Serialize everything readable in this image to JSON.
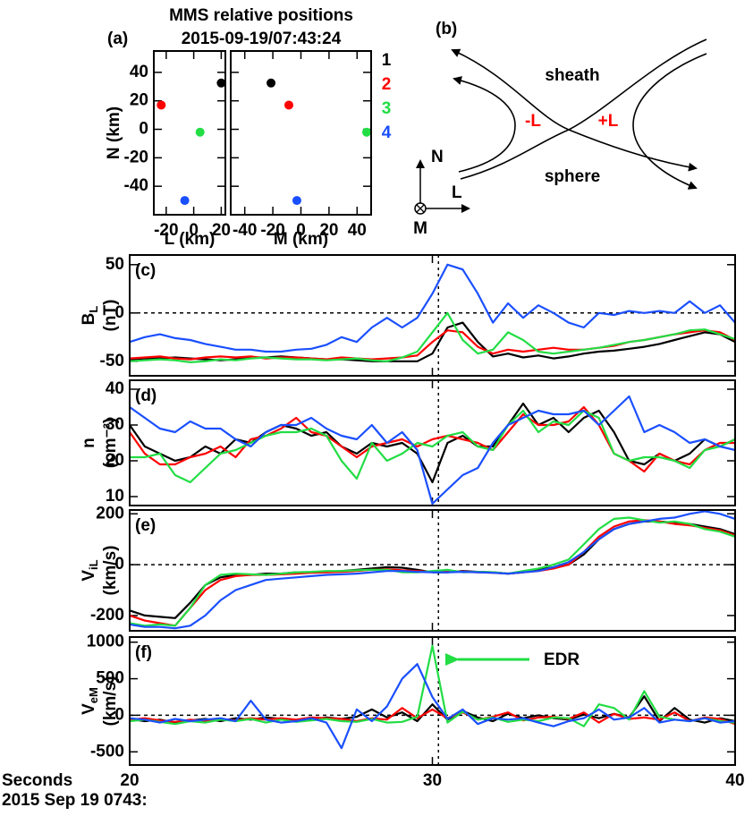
{
  "chart_data": [
    {
      "type": "scatter",
      "panel": "(a)",
      "title": "MMS relative positions",
      "subtitle": "2015-09-19/07:43:24",
      "xlabel": "L (km)",
      "ylabel": "N (km)",
      "xlim": [
        -29,
        23
      ],
      "ylim": [
        -60,
        55
      ],
      "xticks": [
        -20,
        0,
        20
      ],
      "yticks": [
        -40,
        -20,
        0,
        20,
        40
      ],
      "series": [
        {
          "name": "1",
          "color": "#000000",
          "x": [
            20
          ],
          "values": [
            32.5
          ]
        },
        {
          "name": "2",
          "color": "#ff0000",
          "x": [
            -23.6
          ],
          "values": [
            17
          ]
        },
        {
          "name": "3",
          "color": "#22dd44",
          "x": [
            4.6
          ],
          "values": [
            -2
          ]
        },
        {
          "name": "4",
          "color": "#1a4fff",
          "x": [
            -6.5
          ],
          "values": [
            -50
          ]
        }
      ]
    },
    {
      "type": "scatter",
      "xlabel": "M (km)",
      "xlim": [
        -50,
        50
      ],
      "ylim": [
        -60,
        55
      ],
      "xticks": [
        -40,
        -20,
        0,
        20,
        40
      ],
      "yticks": [
        -40,
        -20,
        0,
        20,
        40
      ],
      "series": [
        {
          "color": "#000000",
          "x": [
            -21.3
          ],
          "values": [
            32.5
          ]
        },
        {
          "color": "#ff0000",
          "x": [
            -8.6
          ],
          "values": [
            17
          ]
        },
        {
          "color": "#22dd44",
          "x": [
            46.8
          ],
          "values": [
            -2
          ]
        },
        {
          "color": "#1a4fff",
          "x": [
            -2.9
          ],
          "values": [
            -50
          ]
        }
      ]
    },
    {
      "type": "line",
      "panel": "(c)",
      "ylabel": "B",
      "ylabel_sub": "L",
      "ylabel_unit": "(nT)",
      "xlim": [
        20,
        40
      ],
      "xticks": [
        20,
        30,
        40
      ],
      "ylim": [
        -65,
        60
      ],
      "yticks": [
        -50,
        0,
        50
      ],
      "hline": 0,
      "vline": 30.2,
      "x": [
        20,
        20.5,
        21,
        21.5,
        22,
        22.5,
        23,
        23.5,
        24,
        24.5,
        25,
        25.5,
        26,
        26.5,
        27,
        27.5,
        28,
        28.5,
        29,
        29.5,
        30,
        30.5,
        31,
        31.5,
        32,
        32.5,
        33,
        33.5,
        34,
        34.5,
        35,
        35.5,
        36,
        36.5,
        37,
        37.5,
        38,
        38.5,
        39,
        39.5,
        40
      ],
      "series": [
        {
          "color": "#000000",
          "values": [
            -48,
            -47,
            -47,
            -46,
            -47,
            -48,
            -49,
            -48,
            -46,
            -46,
            -45,
            -46,
            -47,
            -48,
            -48,
            -49,
            -50,
            -50,
            -50,
            -50,
            -42,
            -15,
            -10,
            -30,
            -45,
            -42,
            -46,
            -44,
            -47,
            -45,
            -42,
            -40,
            -39,
            -37,
            -35,
            -32,
            -28,
            -24,
            -20,
            -22,
            -30
          ]
        },
        {
          "color": "#ff0000",
          "values": [
            -47,
            -46,
            -45,
            -47,
            -48,
            -46,
            -45,
            -46,
            -45,
            -47,
            -46,
            -46,
            -47,
            -48,
            -46,
            -47,
            -48,
            -47,
            -46,
            -44,
            -30,
            -18,
            -20,
            -35,
            -42,
            -38,
            -40,
            -38,
            -36,
            -38,
            -38,
            -36,
            -34,
            -30,
            -28,
            -25,
            -22,
            -20,
            -18,
            -20,
            -28
          ]
        },
        {
          "color": "#22dd44",
          "values": [
            -50,
            -49,
            -48,
            -49,
            -51,
            -50,
            -48,
            -49,
            -47,
            -46,
            -47,
            -48,
            -48,
            -49,
            -48,
            -47,
            -49,
            -50,
            -46,
            -40,
            -20,
            0,
            -28,
            -42,
            -38,
            -20,
            -28,
            -40,
            -42,
            -40,
            -38,
            -36,
            -33,
            -30,
            -28,
            -25,
            -22,
            -18,
            -17,
            -22,
            -27
          ]
        },
        {
          "color": "#1a4fff",
          "values": [
            -30,
            -25,
            -22,
            -26,
            -28,
            -32,
            -35,
            -38,
            -38,
            -40,
            -40,
            -38,
            -37,
            -33,
            -25,
            -30,
            -15,
            -5,
            -15,
            -5,
            20,
            50,
            45,
            20,
            -10,
            10,
            -5,
            8,
            0,
            -10,
            -15,
            0,
            -2,
            2,
            0,
            2,
            0,
            12,
            0,
            8,
            -10
          ]
        }
      ]
    },
    {
      "type": "line",
      "panel": "(d)",
      "ylabel": "n",
      "ylabel_unit": "(cm⁻³)",
      "xlim": [
        20,
        40
      ],
      "xticks": [
        20,
        30,
        40
      ],
      "ylim": [
        7.5,
        42.5
      ],
      "yticks": [
        10,
        20,
        30,
        40
      ],
      "vline": 30.2,
      "x": [
        20,
        20.5,
        21,
        21.5,
        22,
        22.5,
        23,
        23.5,
        24,
        24.5,
        25,
        25.5,
        26,
        26.5,
        27,
        27.5,
        28,
        28.5,
        29,
        29.5,
        30,
        30.5,
        31,
        31.5,
        32,
        32.5,
        33,
        33.5,
        34,
        34.5,
        35,
        35.5,
        36,
        36.5,
        37,
        37.5,
        38,
        38.5,
        39,
        39.5,
        40
      ],
      "series": [
        {
          "color": "#000000",
          "values": [
            30,
            24,
            22,
            20,
            21,
            24,
            22,
            26,
            25,
            28,
            30,
            29,
            27,
            28,
            24,
            22,
            25,
            24,
            25,
            22,
            14,
            25,
            27,
            24,
            24,
            30,
            36,
            30,
            32,
            28,
            32,
            34,
            28,
            20,
            19,
            22,
            20,
            22,
            26,
            24,
            26
          ]
        },
        {
          "color": "#ff0000",
          "values": [
            28,
            22,
            19,
            19,
            21,
            22,
            24,
            21,
            26,
            27,
            29,
            32,
            28,
            27,
            24,
            21,
            24,
            25,
            26,
            24,
            26,
            27,
            26,
            25,
            23,
            28,
            33,
            30,
            30,
            31,
            35,
            30,
            22,
            20,
            17,
            22,
            20,
            19,
            23,
            25,
            25
          ]
        },
        {
          "color": "#22dd44",
          "values": [
            21,
            21,
            22,
            16,
            14,
            18,
            22,
            23,
            25,
            27,
            28,
            28,
            29,
            27,
            20,
            15,
            25,
            20,
            22,
            25,
            24,
            27,
            28,
            24,
            23,
            30,
            34,
            28,
            31,
            30,
            34,
            32,
            22,
            20,
            21,
            21,
            20,
            18,
            23,
            24,
            26
          ]
        },
        {
          "color": "#1a4fff",
          "values": [
            35,
            32,
            29,
            28,
            31,
            29,
            29,
            26,
            24,
            28,
            30,
            30,
            32,
            29,
            27,
            26,
            30,
            25,
            28,
            23,
            8,
            12,
            16,
            18,
            25,
            30,
            32,
            34,
            33,
            33,
            34,
            30,
            34,
            38,
            28,
            30,
            28,
            25,
            26,
            24,
            23
          ]
        }
      ]
    },
    {
      "type": "line",
      "panel": "(e)",
      "ylabel": "V",
      "ylabel_sub": "iL",
      "ylabel_unit": "(km/s)",
      "xlim": [
        20,
        40
      ],
      "xticks": [
        20,
        30,
        40
      ],
      "ylim": [
        -260,
        215
      ],
      "yticks": [
        -200,
        0,
        200
      ],
      "hline": 0,
      "vline": 30.2,
      "x": [
        20,
        20.5,
        21,
        21.5,
        22,
        22.5,
        23,
        23.5,
        24,
        24.5,
        25,
        25.5,
        26,
        26.5,
        27,
        27.5,
        28,
        28.5,
        29,
        29.5,
        30,
        30.5,
        31,
        31.5,
        32,
        32.5,
        33,
        33.5,
        34,
        34.5,
        35,
        35.5,
        36,
        36.5,
        37,
        37.5,
        38,
        38.5,
        39,
        39.5,
        40
      ],
      "series": [
        {
          "color": "#000000",
          "values": [
            -180,
            -200,
            -205,
            -210,
            -150,
            -80,
            -50,
            -40,
            -40,
            -35,
            -35,
            -30,
            -30,
            -28,
            -25,
            -20,
            -15,
            -10,
            -12,
            -20,
            -30,
            -30,
            -25,
            -28,
            -30,
            -35,
            -30,
            -20,
            -10,
            0,
            40,
            100,
            140,
            160,
            170,
            170,
            165,
            160,
            150,
            140,
            120
          ]
        },
        {
          "color": "#ff0000",
          "values": [
            -200,
            -220,
            -230,
            -240,
            -170,
            -100,
            -60,
            -45,
            -40,
            -40,
            -38,
            -35,
            -32,
            -30,
            -28,
            -25,
            -20,
            -18,
            -22,
            -25,
            -28,
            -28,
            -27,
            -30,
            -32,
            -35,
            -30,
            -25,
            -15,
            0,
            50,
            110,
            150,
            170,
            175,
            170,
            160,
            155,
            145,
            135,
            115
          ]
        },
        {
          "color": "#22dd44",
          "values": [
            -230,
            -240,
            -235,
            -240,
            -170,
            -80,
            -40,
            -35,
            -38,
            -40,
            -35,
            -30,
            -28,
            -25,
            -25,
            -22,
            -20,
            -20,
            -30,
            -30,
            -25,
            -20,
            -30,
            -28,
            -30,
            -35,
            -25,
            -15,
            0,
            20,
            80,
            140,
            180,
            185,
            175,
            165,
            170,
            160,
            140,
            130,
            110
          ]
        },
        {
          "color": "#1a4fff",
          "values": [
            -235,
            -245,
            -245,
            -250,
            -240,
            -200,
            -140,
            -100,
            -80,
            -60,
            -55,
            -50,
            -45,
            -40,
            -38,
            -35,
            -30,
            -25,
            -25,
            -28,
            -30,
            -30,
            -28,
            -30,
            -32,
            -35,
            -30,
            -25,
            -10,
            10,
            50,
            100,
            140,
            160,
            170,
            180,
            185,
            200,
            210,
            200,
            180
          ]
        }
      ]
    },
    {
      "type": "line",
      "panel": "(f)",
      "ylabel": "V",
      "ylabel_sub": "eM",
      "ylabel_unit": "(km/s)",
      "xlim": [
        20,
        40
      ],
      "xticks": [
        20,
        30,
        40
      ],
      "ylim": [
        -680,
        1070
      ],
      "yticks": [
        -500,
        0,
        500,
        1000
      ],
      "hline": 0,
      "vline": 30.2,
      "xlabel": "Seconds",
      "date_label": "2015 Sep 19 0743:",
      "annotation": "EDR",
      "x": [
        20,
        20.5,
        21,
        21.5,
        22,
        22.5,
        23,
        23.5,
        24,
        24.5,
        25,
        25.5,
        26,
        26.5,
        27,
        27.5,
        28,
        28.5,
        29,
        29.5,
        30,
        30.5,
        31,
        31.5,
        32,
        32.5,
        33,
        33.5,
        34,
        34.5,
        35,
        35.5,
        36,
        36.5,
        37,
        37.5,
        38,
        38.5,
        39,
        39.5,
        40
      ],
      "series": [
        {
          "color": "#000000",
          "values": [
            -50,
            -80,
            -60,
            -100,
            -70,
            -50,
            -80,
            -40,
            -60,
            -30,
            -50,
            -80,
            -60,
            -30,
            -50,
            -20,
            80,
            -30,
            40,
            -80,
            150,
            -60,
            60,
            -30,
            -80,
            20,
            -40,
            0,
            -40,
            -60,
            10,
            -40,
            20,
            -30,
            260,
            -80,
            100,
            -60,
            -100,
            -40,
            -80
          ]
        },
        {
          "color": "#ff0000",
          "values": [
            -60,
            -40,
            -70,
            -90,
            -60,
            -80,
            -50,
            -70,
            -40,
            -60,
            -40,
            -60,
            -30,
            -40,
            -50,
            -80,
            -40,
            -60,
            100,
            -40,
            80,
            -40,
            40,
            -60,
            -20,
            40,
            -70,
            -30,
            -20,
            -50,
            40,
            -100,
            20,
            -50,
            -30,
            -60,
            40,
            -80,
            -30,
            -50,
            -120
          ]
        },
        {
          "color": "#22dd44",
          "values": [
            -80,
            -60,
            -90,
            -120,
            -80,
            -100,
            -60,
            -80,
            -50,
            -100,
            -60,
            -90,
            -70,
            -50,
            -80,
            -90,
            -50,
            -100,
            -90,
            -20,
            950,
            -100,
            50,
            -60,
            -30,
            -90,
            -60,
            -80,
            -30,
            -40,
            -150,
            150,
            100,
            -60,
            330,
            -20,
            -60,
            -80,
            -40,
            -80,
            -100
          ]
        },
        {
          "color": "#1a4fff",
          "values": [
            -40,
            -60,
            -100,
            -50,
            -80,
            -60,
            -40,
            -80,
            200,
            -60,
            -100,
            -80,
            -40,
            -100,
            -450,
            80,
            -80,
            120,
            500,
            700,
            250,
            -50,
            80,
            -120,
            -40,
            -60,
            -40,
            -100,
            -150,
            -80,
            -40,
            80,
            -60,
            -30,
            100,
            -100,
            -60,
            -80,
            -40,
            -100,
            -80
          ]
        }
      ]
    }
  ],
  "diagram": {
    "panel": "(b)",
    "sheath": "sheath",
    "sphere": "sphere",
    "minus": "-L",
    "plus": "+L",
    "n_axis": "N",
    "l_axis": "L",
    "m_axis": "M"
  }
}
